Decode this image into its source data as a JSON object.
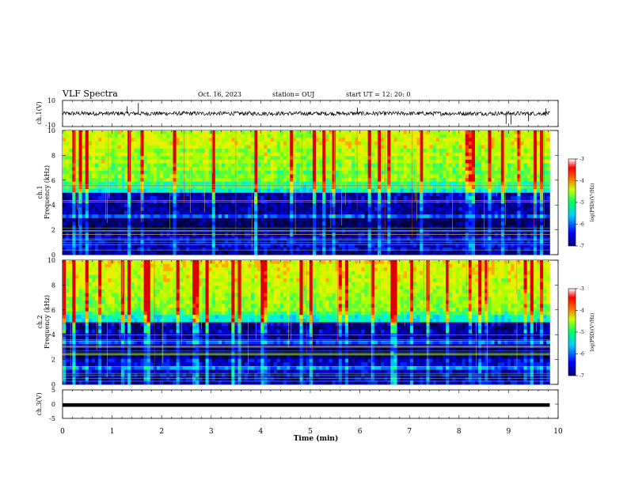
{
  "header": {
    "title": "VLF Spectra",
    "date": "Oct. 16, 2023",
    "station": "station= OUJ",
    "start": "start  UT  =   12: 20: 0"
  },
  "chart_data": [
    {
      "type": "line",
      "name": "ch1-waveform",
      "ylabel": "ch.1(V)",
      "ylim": [
        -10,
        10
      ],
      "yticks": [
        "10",
        "-10"
      ],
      "x_range": [
        0,
        9.83
      ],
      "baseline": 0.0,
      "spikes": [
        {
          "x": 1.3,
          "y": 5.5
        },
        {
          "x": 1.53,
          "y": 8.0
        },
        {
          "x": 5.95,
          "y": 4.5
        },
        {
          "x": 8.95,
          "y": -8.0
        },
        {
          "x": 9.05,
          "y": -8.5
        },
        {
          "x": 9.4,
          "y": -6.0
        },
        {
          "x": 9.75,
          "y": 4.0
        }
      ]
    },
    {
      "type": "heatmap",
      "name": "ch1-spectrogram",
      "ylabel": "ch.1\nFrequency (kHz)",
      "ylim": [
        0,
        10
      ],
      "yticks": [
        "10",
        "8",
        "6",
        "4",
        "2",
        "0"
      ],
      "x_range": [
        0,
        9.83
      ],
      "colorbar": {
        "label": "log(PSD)(V²/Hz)",
        "range": [
          -7,
          -3
        ],
        "ticks": [
          "-3",
          "-4",
          "-5",
          "-6",
          "-7"
        ]
      }
    },
    {
      "type": "heatmap",
      "name": "ch2-spectrogram",
      "ylabel": "ch.2\nFrequency (kHz)",
      "ylim": [
        0,
        10
      ],
      "yticks": [
        "10",
        "8",
        "6",
        "4",
        "2",
        "0"
      ],
      "x_range": [
        0,
        9.83
      ],
      "colorbar": {
        "label": "log(PSD)(V²/Hz)",
        "range": [
          -7,
          -3
        ],
        "ticks": [
          "-3",
          "-4",
          "-5",
          "-6",
          "-7"
        ]
      }
    },
    {
      "type": "line",
      "name": "ch3-waveform",
      "ylabel": "ch.3(V)",
      "ylim": [
        -5,
        5
      ],
      "yticks": [
        "5",
        "0",
        "-5"
      ],
      "x_range": [
        0,
        9.83
      ],
      "baseline": -0.3
    }
  ],
  "xaxis": {
    "label": "Time (min)",
    "range": [
      0,
      10
    ],
    "ticks": [
      "0",
      "1",
      "2",
      "3",
      "4",
      "5",
      "6",
      "7",
      "8",
      "9",
      "10"
    ]
  }
}
